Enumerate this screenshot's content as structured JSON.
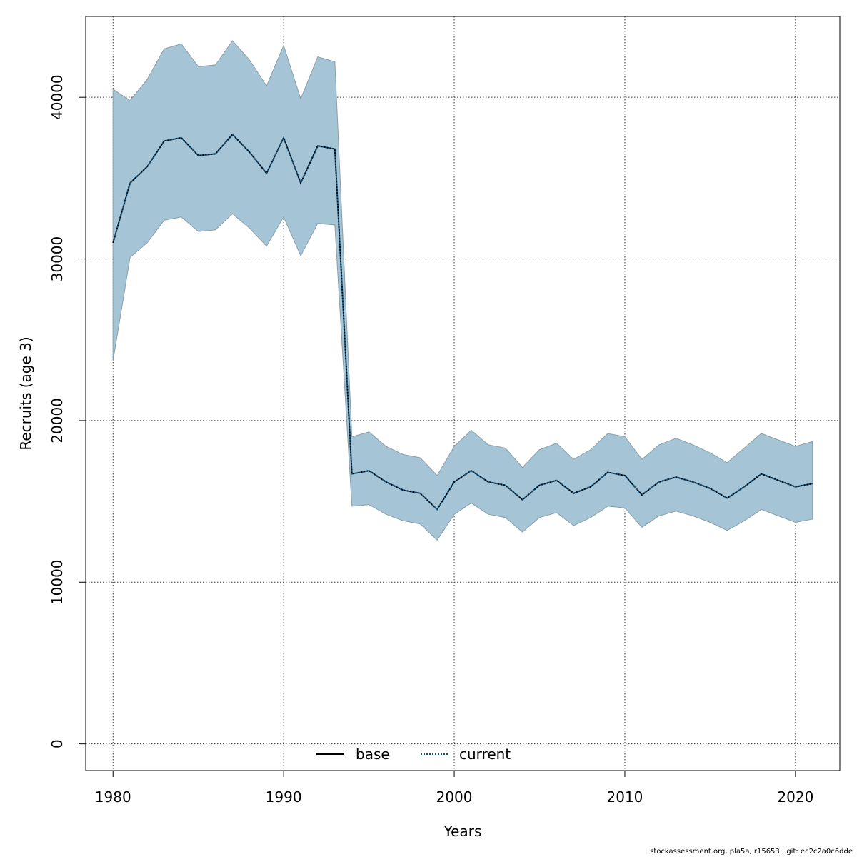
{
  "chart_data": {
    "type": "area",
    "title": "",
    "xlabel": "Years",
    "ylabel": "Recruits (age 3)",
    "xlim": [
      1978.4,
      2022.6
    ],
    "ylim": [
      -1650,
      45000
    ],
    "x_ticks": [
      1980,
      1990,
      2000,
      2010,
      2020
    ],
    "y_ticks": [
      0,
      10000,
      20000,
      30000,
      40000
    ],
    "grid": true,
    "legend": {
      "position": "bottom-center",
      "entries": [
        {
          "label": "base",
          "style": "solid",
          "color": "#000000"
        },
        {
          "label": "current",
          "style": "dotted",
          "color": "#0b5a8a"
        }
      ]
    },
    "colors": {
      "band_fill": "#a5c5d7",
      "band_stroke": "#8a9ea8",
      "base": "#000000",
      "current": "#0b5a8a",
      "grid": "#333333"
    },
    "x": [
      1980,
      1981,
      1982,
      1983,
      1984,
      1985,
      1986,
      1987,
      1988,
      1989,
      1990,
      1991,
      1992,
      1993,
      1994,
      1995,
      1996,
      1997,
      1998,
      1999,
      2000,
      2001,
      2002,
      2003,
      2004,
      2005,
      2006,
      2007,
      2008,
      2009,
      2010,
      2011,
      2012,
      2013,
      2014,
      2015,
      2016,
      2017,
      2018,
      2019,
      2020,
      2021
    ],
    "series": [
      {
        "name": "base",
        "values": [
          31000,
          34700,
          35700,
          37300,
          37500,
          36400,
          36500,
          37700,
          36600,
          35300,
          37500,
          34700,
          37000,
          36800,
          16700,
          16900,
          16200,
          15700,
          15500,
          14500,
          16200,
          16900,
          16200,
          16000,
          15100,
          16000,
          16300,
          15500,
          15900,
          16800,
          16600,
          15400,
          16200,
          16500,
          16200,
          15800,
          15200,
          15900,
          16700,
          16300,
          15900,
          16100
        ]
      },
      {
        "name": "current",
        "values": [
          31000,
          34700,
          35700,
          37300,
          37500,
          36400,
          36500,
          37700,
          36600,
          35300,
          37500,
          34700,
          37000,
          36800,
          16700,
          16900,
          16200,
          15700,
          15500,
          14500,
          16200,
          16900,
          16200,
          16000,
          15100,
          16000,
          16300,
          15500,
          15900,
          16800,
          16600,
          15400,
          16200,
          16500,
          16200,
          15800,
          15200,
          15900,
          16700,
          16300,
          15900,
          16100
        ]
      }
    ],
    "band": {
      "lower": [
        23700,
        30100,
        31000,
        32400,
        32600,
        31700,
        31800,
        32800,
        31900,
        30800,
        32600,
        30200,
        32200,
        32100,
        14700,
        14800,
        14200,
        13800,
        13600,
        12600,
        14200,
        14900,
        14200,
        14000,
        13100,
        14000,
        14300,
        13500,
        14000,
        14700,
        14600,
        13400,
        14100,
        14400,
        14100,
        13700,
        13200,
        13800,
        14500,
        14100,
        13700,
        13900
      ],
      "upper": [
        40500,
        39800,
        41100,
        43000,
        43300,
        41900,
        42000,
        43500,
        42300,
        40700,
        43200,
        39900,
        42500,
        42200,
        19000,
        19300,
        18400,
        17900,
        17700,
        16600,
        18400,
        19400,
        18500,
        18300,
        17100,
        18200,
        18600,
        17600,
        18200,
        19200,
        19000,
        17600,
        18500,
        18900,
        18500,
        18000,
        17400,
        18300,
        19200,
        18800,
        18400,
        18700
      ]
    }
  },
  "footer": "stockassessment.org, pla5a, r15653 , git: ec2c2a0c6dde"
}
